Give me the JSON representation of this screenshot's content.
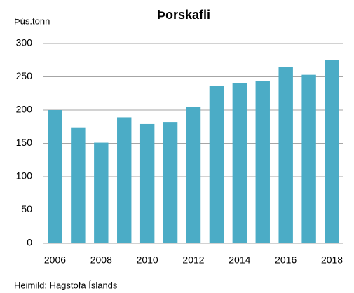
{
  "chart_data": {
    "type": "bar",
    "title": "Þorskafli",
    "y_label": "Þús.tonn",
    "source": "Heimild: Hagstofa Íslands",
    "categories": [
      "2006",
      null,
      "2008",
      null,
      "2010",
      null,
      "2012",
      null,
      "2014",
      null,
      "2016",
      null,
      "2018"
    ],
    "values": [
      200,
      174,
      151,
      189,
      179,
      182,
      205,
      236,
      240,
      244,
      265,
      253,
      275
    ],
    "color": "#4bacc6",
    "ylim": [
      0,
      300
    ],
    "yticks": [
      0,
      50,
      100,
      150,
      200,
      250,
      300
    ],
    "grid": true
  }
}
